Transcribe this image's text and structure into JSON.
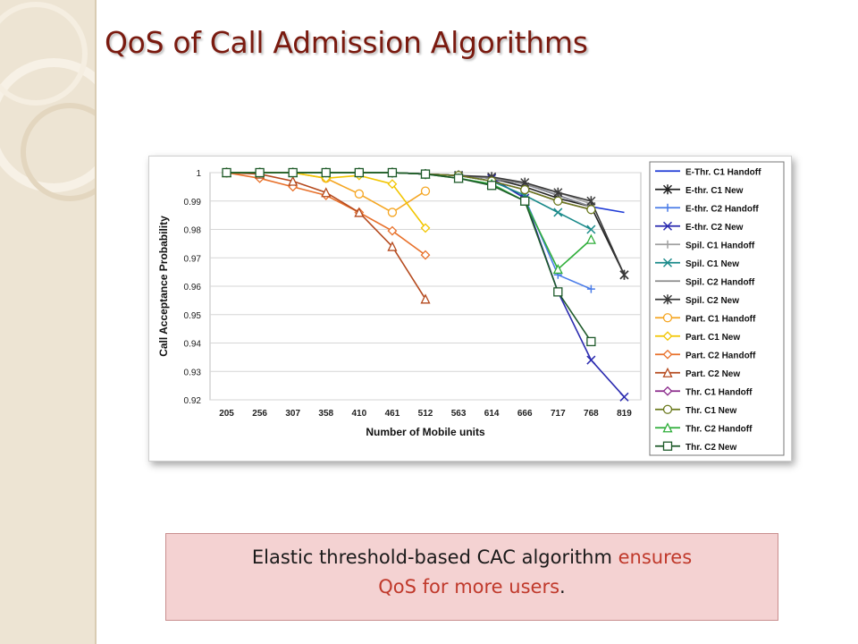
{
  "slide": {
    "title": "QoS of Call Admission Algorithms",
    "caption": {
      "part1": "Elastic threshold-based CAC algorithm",
      "highlight1": "ensures",
      "highlight2": "QoS for more users",
      "end": "."
    },
    "colors": {
      "title": "#7a1a0f",
      "highlight": "#c0392b",
      "sidebar": "#ede4d3",
      "caption_bg": "#f4d2d2"
    }
  },
  "chart_data": {
    "type": "line",
    "title": "",
    "xlabel": "Number of Mobile units",
    "ylabel": "Call Acceptance Probability",
    "categories": [
      "205",
      "256",
      "307",
      "358",
      "410",
      "461",
      "512",
      "563",
      "614",
      "666",
      "717",
      "768",
      "819"
    ],
    "ylim": [
      0.92,
      1.0
    ],
    "yticks": [
      "0.92",
      "0.93",
      "0.94",
      "0.95",
      "0.96",
      "0.97",
      "0.98",
      "0.99",
      "1"
    ],
    "grid": true,
    "legend_position": "right",
    "series": [
      {
        "name": "E-Thr. C1 Handoff",
        "color": "#1f3bd6",
        "marker": "none",
        "values": [
          1,
          1,
          1,
          1,
          1,
          1,
          0.9995,
          0.999,
          0.998,
          0.996,
          0.992,
          0.988,
          0.986
        ]
      },
      {
        "name": "E-thr. C1 New",
        "color": "#222222",
        "marker": "star",
        "values": [
          1,
          1,
          1,
          1,
          1,
          1,
          0.9995,
          0.999,
          0.998,
          0.995,
          0.991,
          0.988,
          0.964
        ]
      },
      {
        "name": "E-thr. C2 Handoff",
        "color": "#4a7ce8",
        "marker": "plus",
        "values": [
          1,
          1,
          1,
          1,
          1,
          1,
          0.9995,
          0.999,
          0.998,
          0.991,
          0.964,
          0.959,
          null
        ]
      },
      {
        "name": "E-thr. C2 New",
        "color": "#2b2bb0",
        "marker": "x",
        "values": [
          1,
          1,
          1,
          1,
          1,
          1,
          0.9995,
          0.999,
          0.998,
          0.991,
          0.958,
          0.934,
          0.921
        ]
      },
      {
        "name": "Spil. C1 Handoff",
        "color": "#a0a0a0",
        "marker": "plus",
        "values": [
          1,
          1,
          1,
          1,
          1,
          1,
          0.9995,
          0.999,
          0.998,
          0.996,
          0.993,
          0.989,
          null
        ]
      },
      {
        "name": "Spil. C1 New",
        "color": "#1a8a8a",
        "marker": "x",
        "values": [
          1,
          1,
          1,
          1,
          1,
          1,
          0.9995,
          0.999,
          0.997,
          0.992,
          0.986,
          0.98,
          null
        ]
      },
      {
        "name": "Spil. C2 Handoff",
        "color": "#8c8c8c",
        "marker": "none",
        "values": [
          1,
          1,
          1,
          1,
          1,
          1,
          0.9995,
          0.999,
          0.998,
          0.996,
          0.992,
          0.988,
          null
        ]
      },
      {
        "name": "Spil. C2 New",
        "color": "#3a3a3a",
        "marker": "star",
        "values": [
          1,
          1,
          1,
          1,
          1,
          1,
          0.9995,
          0.999,
          0.9985,
          0.9965,
          0.993,
          0.99,
          0.964
        ]
      },
      {
        "name": "Part. C1 Handoff",
        "color": "#f5a623",
        "marker": "circle",
        "values": [
          1,
          1,
          1,
          0.998,
          0.9925,
          0.986,
          0.9935,
          null,
          null,
          null,
          null,
          null,
          null
        ]
      },
      {
        "name": "Part. C1 New",
        "color": "#f2c500",
        "marker": "diamond",
        "values": [
          1,
          1,
          1,
          0.998,
          0.999,
          0.996,
          0.9805,
          null,
          null,
          null,
          null,
          null,
          null
        ]
      },
      {
        "name": "Part. C2 Handoff",
        "color": "#e8712b",
        "marker": "diamond",
        "values": [
          1,
          0.998,
          0.995,
          0.992,
          0.986,
          0.9795,
          0.971,
          null,
          null,
          null,
          null,
          null,
          null
        ]
      },
      {
        "name": "Part. C2 New",
        "color": "#b54a1e",
        "marker": "triangle",
        "values": [
          1,
          0.9995,
          0.997,
          0.993,
          0.986,
          0.974,
          0.9555,
          null,
          null,
          null,
          null,
          null,
          null
        ]
      },
      {
        "name": "Thr. C1 Handoff",
        "color": "#8b2a8b",
        "marker": "diamond",
        "values": [
          1,
          1,
          1,
          1,
          1,
          1,
          0.9995,
          0.999,
          0.997,
          0.994,
          0.99,
          0.987,
          null
        ]
      },
      {
        "name": "Thr. C1 New",
        "color": "#6b7a1e",
        "marker": "circle",
        "values": [
          1,
          1,
          1,
          1,
          1,
          1,
          0.9995,
          0.999,
          0.997,
          0.994,
          0.99,
          0.987,
          null
        ]
      },
      {
        "name": "Thr. C2 Handoff",
        "color": "#2fae3a",
        "marker": "triangle",
        "values": [
          1,
          1,
          1,
          1,
          1,
          1,
          0.9995,
          0.998,
          0.996,
          0.99,
          0.966,
          0.9765,
          null
        ]
      },
      {
        "name": "Thr. C2 New",
        "color": "#1e5a2a",
        "marker": "square",
        "values": [
          1,
          1,
          1,
          1,
          1,
          1,
          0.9995,
          0.998,
          0.9955,
          0.99,
          0.958,
          0.9405,
          null
        ]
      }
    ]
  }
}
